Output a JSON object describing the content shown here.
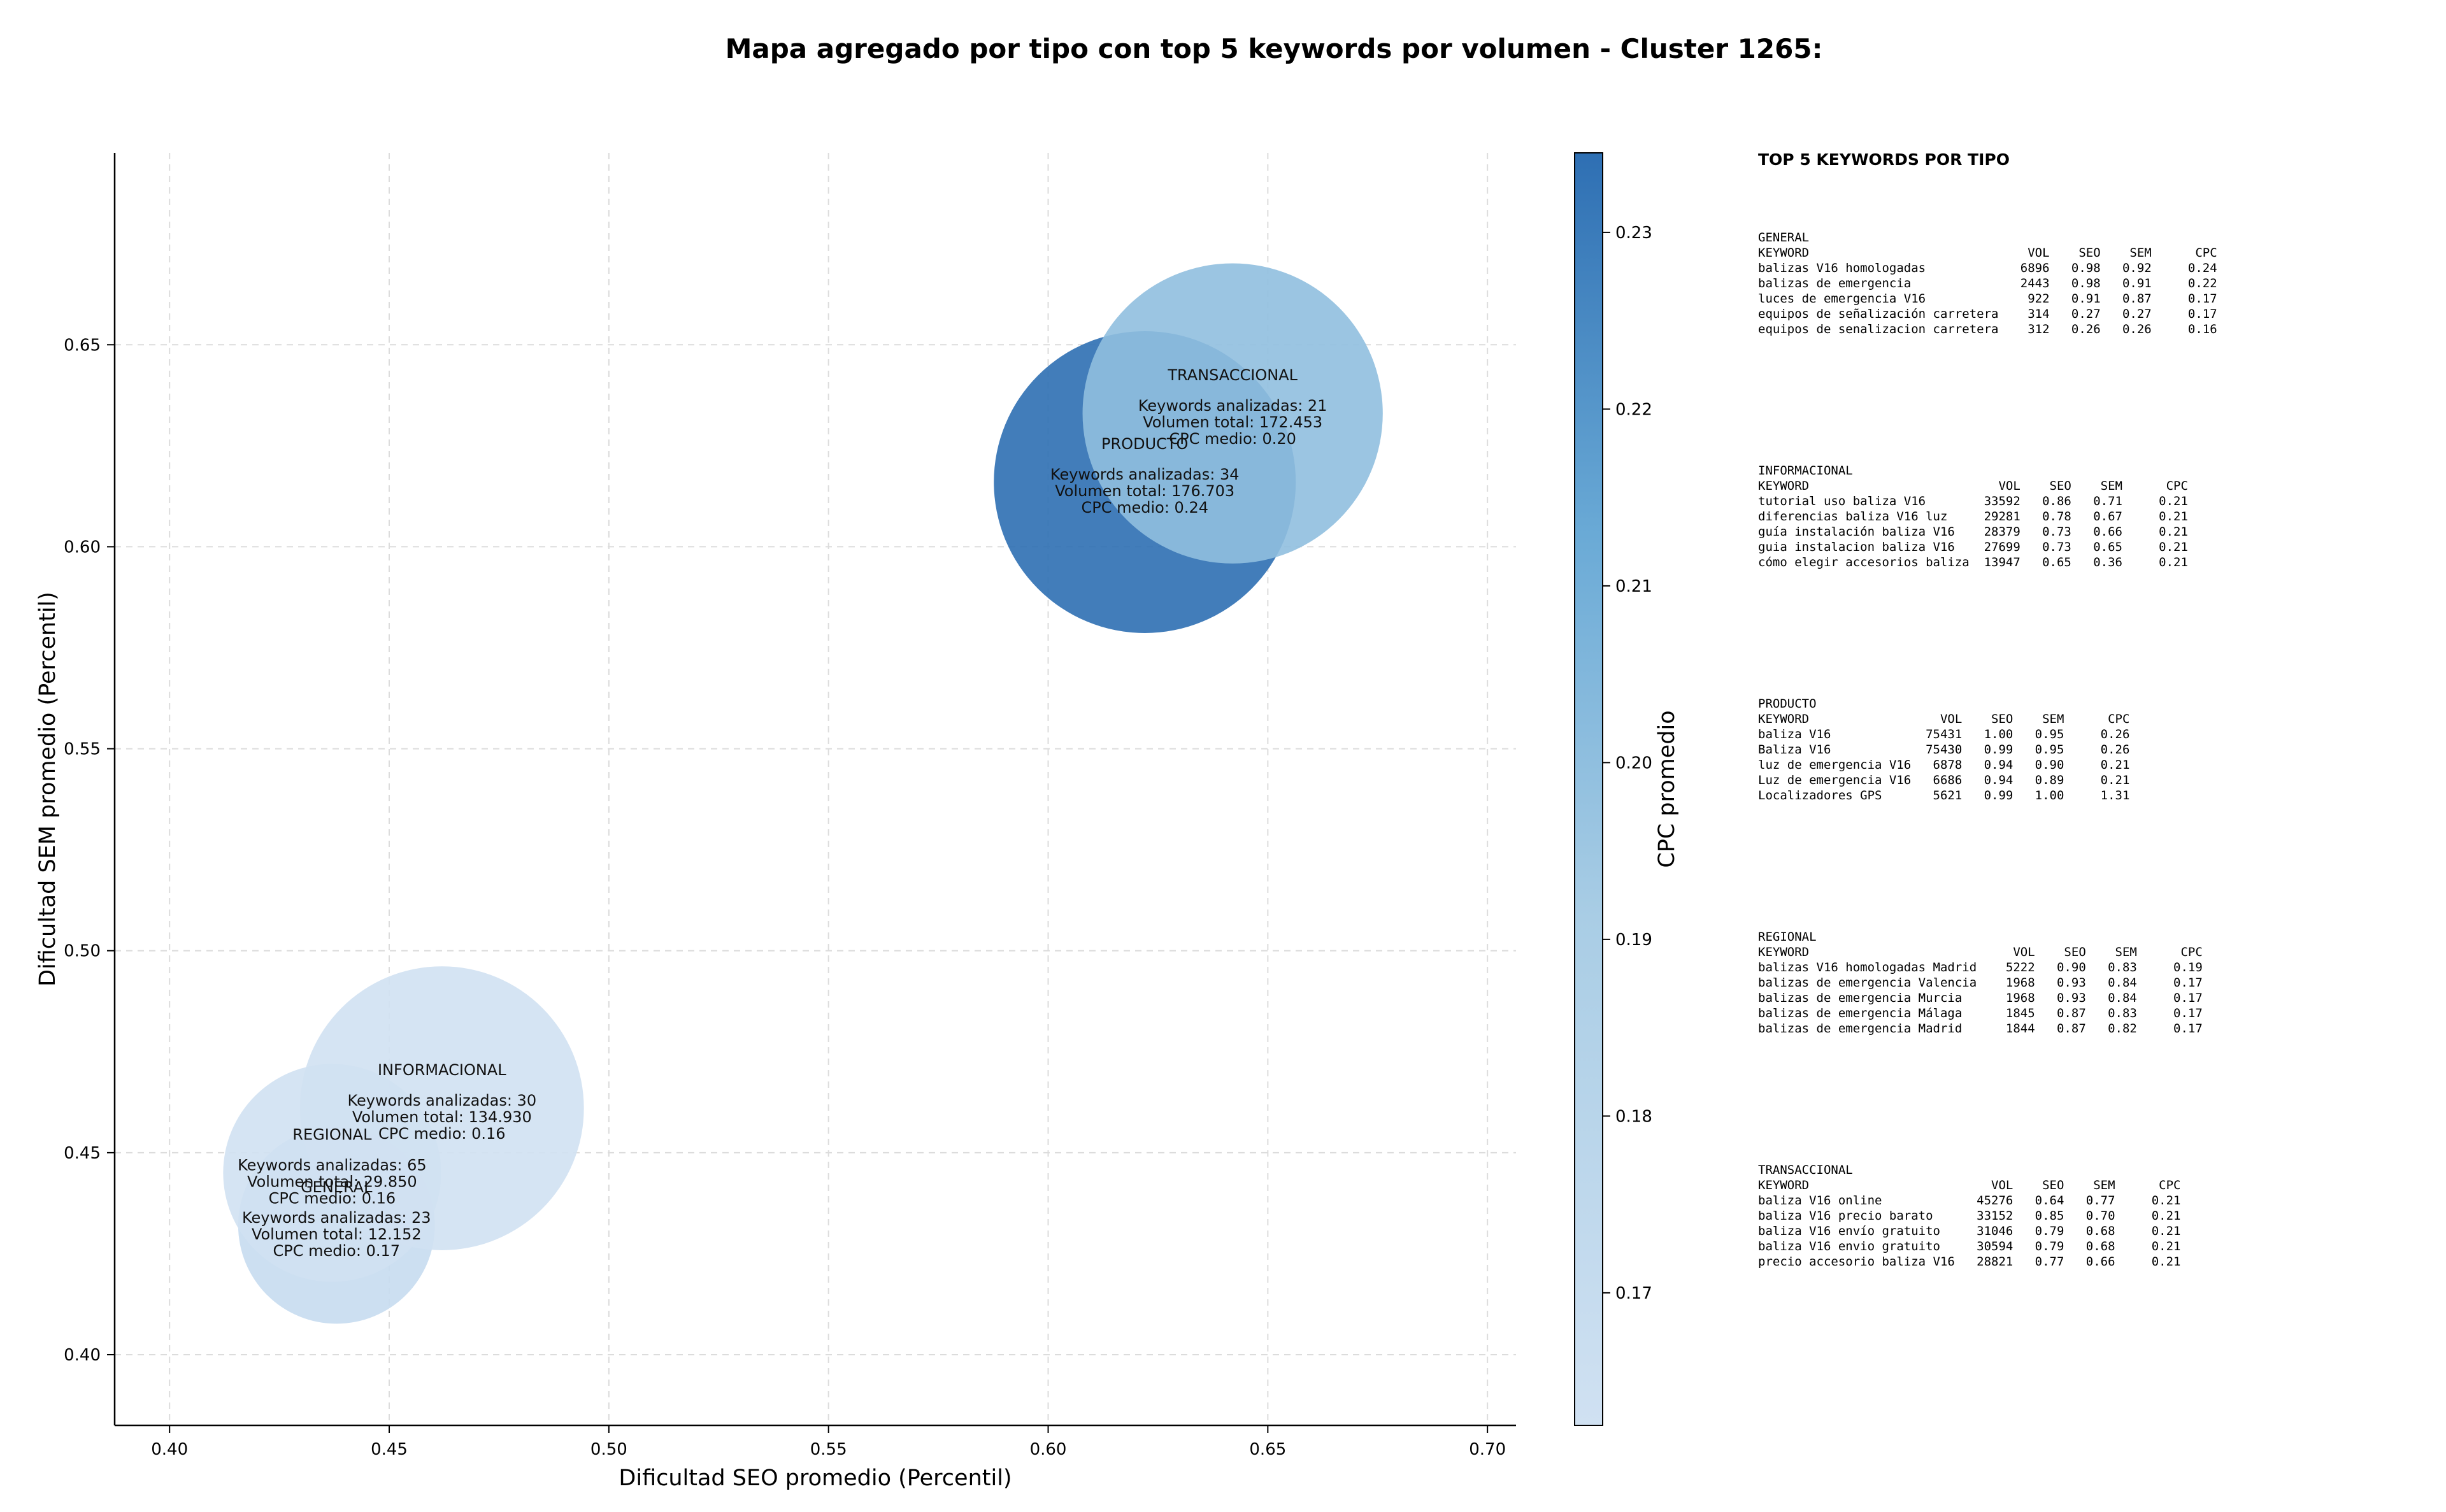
{
  "page": {
    "title": "Mapa agregado por tipo con top 5 keywords por volumen - Cluster 1265:"
  },
  "colors": {
    "cmap_low": "#cfe0f1",
    "cmap_mid": "#8bbfdf",
    "cmap_high": "#2e6fb3",
    "grid": "#dcdcdc"
  },
  "chart_data": {
    "type": "scatter",
    "title": "Mapa agregado por tipo con top 5 keywords por volumen - Cluster 1265:",
    "xlabel": "Dificultad SEO promedio (Percentil)",
    "ylabel": "Dificultad SEM promedio (Percentil)",
    "xlim": [
      0.3875,
      0.7065
    ],
    "ylim": [
      0.3825,
      0.6975
    ],
    "xticks": [
      "0.40",
      "0.45",
      "0.50",
      "0.55",
      "0.60",
      "0.65",
      "0.70"
    ],
    "yticks": [
      "0.40",
      "0.45",
      "0.50",
      "0.55",
      "0.60",
      "0.65"
    ],
    "grid": true,
    "marker_size_encodes": "Volumen total",
    "color_encodes": "CPC promedio",
    "colorbar": {
      "label": "CPC promedio",
      "range": [
        0.1625,
        0.2345
      ],
      "ticks": [
        "0.17",
        "0.18",
        "0.19",
        "0.20",
        "0.21",
        "0.22",
        "0.23"
      ]
    },
    "points": [
      {
        "x": 0.438,
        "y": 0.432,
        "cpc": 0.17,
        "volume": 12152,
        "label_type": "GENERAL",
        "label_kw": "Keywords analizadas: 23",
        "label_vol": "Volumen total: 12.152",
        "label_cpc": "CPC medio: 0.17"
      },
      {
        "x": 0.462,
        "y": 0.461,
        "cpc": 0.16,
        "volume": 134930,
        "label_type": "INFORMACIONAL",
        "label_kw": "Keywords analizadas: 30",
        "label_vol": "Volumen total: 134.930",
        "label_cpc": "CPC medio: 0.16"
      },
      {
        "x": 0.622,
        "y": 0.616,
        "cpc": 0.24,
        "volume": 176703,
        "label_type": "PRODUCTO",
        "label_kw": "Keywords analizadas: 34",
        "label_vol": "Volumen total: 176.703",
        "label_cpc": "CPC medio: 0.24"
      },
      {
        "x": 0.642,
        "y": 0.633,
        "cpc": 0.2,
        "volume": 172453,
        "label_type": "TRANSACCIONAL",
        "label_kw": "Keywords analizadas: 21",
        "label_vol": "Volumen total: 172.453",
        "label_cpc": "CPC medio: 0.20"
      },
      {
        "x": 0.437,
        "y": 0.445,
        "cpc": 0.16,
        "volume": 29850,
        "label_type": "REGIONAL",
        "label_kw": "Keywords analizadas: 65",
        "label_vol": "Volumen total: 29.850",
        "label_cpc": "CPC medio: 0.16"
      }
    ]
  },
  "side_panel": {
    "title": "TOP 5 KEYWORDS POR TIPO",
    "groups": [
      {
        "name": "GENERAL",
        "text": "KEYWORD                              VOL    SEO    SEM      CPC\nbalizas V16 homologadas             6896   0.98   0.92     0.24\nbalizas de emergencia               2443   0.98   0.91     0.22\nluces de emergencia V16              922   0.91   0.87     0.17\nequipos de señalización carretera    314   0.27   0.27     0.17\nequipos de senalizacion carretera    312   0.26   0.26     0.16"
      },
      {
        "name": "INFORMACIONAL",
        "text": "KEYWORD                          VOL    SEO    SEM      CPC\ntutorial uso baliza V16        33592   0.86   0.71     0.21\ndiferencias baliza V16 luz     29281   0.78   0.67     0.21\nguía instalación baliza V16    28379   0.73   0.66     0.21\nguia instalacion baliza V16    27699   0.73   0.65     0.21\ncómo elegir accesorios baliza  13947   0.65   0.36     0.21"
      },
      {
        "name": "PRODUCTO",
        "text": "KEYWORD                  VOL    SEO    SEM      CPC\nbaliza V16             75431   1.00   0.95     0.26\nBaliza V16             75430   0.99   0.95     0.26\nluz de emergencia V16   6878   0.94   0.90     0.21\nLuz de emergencia V16   6686   0.94   0.89     0.21\nLocalizadores GPS       5621   0.99   1.00     1.31"
      },
      {
        "name": "REGIONAL",
        "text": "KEYWORD                            VOL    SEO    SEM      CPC\nbalizas V16 homologadas Madrid    5222   0.90   0.83     0.19\nbalizas de emergencia Valencia    1968   0.93   0.84     0.17\nbalizas de emergencia Murcia      1968   0.93   0.84     0.17\nbalizas de emergencia Málaga      1845   0.87   0.83     0.17\nbalizas de emergencia Madrid      1844   0.87   0.82     0.17"
      },
      {
        "name": "TRANSACCIONAL",
        "text": "KEYWORD                         VOL    SEO    SEM      CPC\nbaliza V16 online             45276   0.64   0.77     0.21\nbaliza V16 precio barato      33152   0.85   0.70     0.21\nbaliza V16 envío gratuito     31046   0.79   0.68     0.21\nbaliza V16 envio gratuito     30594   0.79   0.68     0.21\nprecio accesorio baliza V16   28821   0.77   0.66     0.21"
      }
    ]
  }
}
